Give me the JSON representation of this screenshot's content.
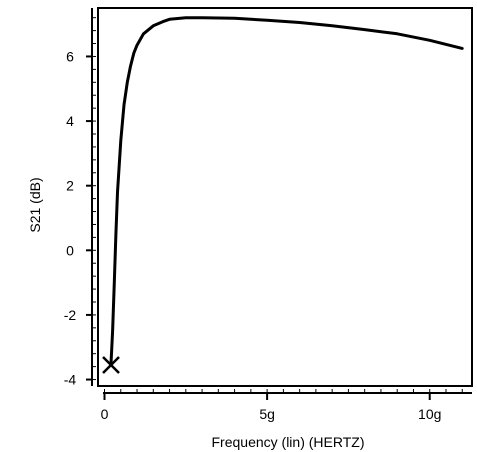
{
  "chart_data": {
    "type": "line",
    "title": "",
    "xlabel": "Frequency (lin) (HERTZ)",
    "ylabel": "S21 (dB)",
    "xlim": [
      -200000000.0,
      11300000000.0
    ],
    "ylim": [
      -4.2,
      7.5
    ],
    "x_ticks": [
      {
        "value": 0,
        "label": "0"
      },
      {
        "value": 5000000000.0,
        "label": "5g"
      },
      {
        "value": 10000000000.0,
        "label": "10g"
      }
    ],
    "y_ticks": [
      {
        "value": -4,
        "label": "-4"
      },
      {
        "value": -2,
        "label": "-2"
      },
      {
        "value": 0,
        "label": "0"
      },
      {
        "value": 2,
        "label": "2"
      },
      {
        "value": 4,
        "label": "4"
      },
      {
        "value": 6,
        "label": "6"
      }
    ],
    "grid": false,
    "series": [
      {
        "color": "#000000",
        "x": [
          200000000.0,
          250000000.0,
          300000000.0,
          350000000.0,
          400000000.0,
          500000000.0,
          600000000.0,
          700000000.0,
          800000000.0,
          900000000.0,
          1000000000.0,
          1200000000.0,
          1500000000.0,
          1800000000.0,
          2000000000.0,
          2500000000.0,
          3000000000.0,
          4000000000.0,
          5000000000.0,
          6000000000.0,
          7000000000.0,
          8000000000.0,
          9000000000.0,
          10000000000.0,
          11000000000.0
        ],
        "y": [
          -3.5,
          -2.5,
          -1.0,
          0.5,
          1.8,
          3.4,
          4.5,
          5.2,
          5.7,
          6.1,
          6.35,
          6.7,
          6.95,
          7.08,
          7.15,
          7.2,
          7.2,
          7.18,
          7.12,
          7.05,
          6.95,
          6.83,
          6.7,
          6.5,
          6.25
        ]
      }
    ],
    "marker": {
      "shape": "x",
      "x": 200000000.0,
      "y": -3.55
    }
  }
}
